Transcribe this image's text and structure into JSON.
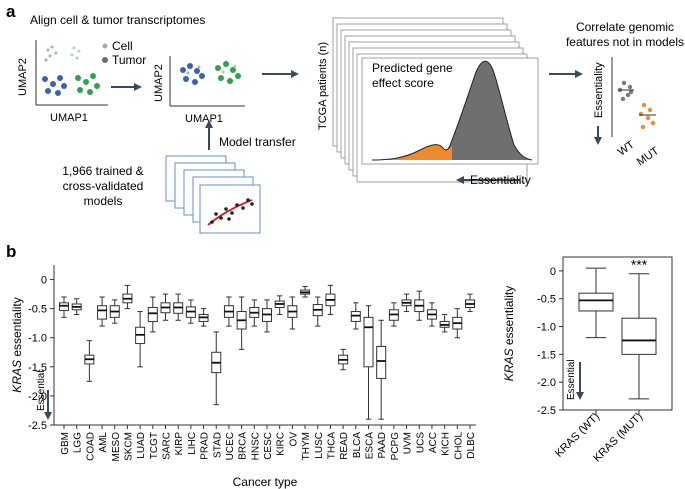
{
  "panel_a": {
    "label": "a",
    "align_title": "Align cell & tumor transcriptomes",
    "legend_cell": "Cell",
    "legend_tumor": "Tumor",
    "umap_x": "UMAP1",
    "umap_y": "UMAP2",
    "model_transfer": "Model transfer",
    "trained_models": [
      "1,966 trained &",
      "cross-validated",
      "models"
    ],
    "tcga_axis": "TCGA patients (n)",
    "predicted_title": [
      "Predicted gene",
      "effect score"
    ],
    "essentiality_label": "Essentiality",
    "correlate_title": [
      "Correlate genomic",
      "features not in models"
    ],
    "wt_label": "WT",
    "mut_label": "MUT",
    "inset_ylabel": "Essentiality",
    "colors": {
      "cell": "#a9a9a9",
      "tumor": "#6b6b6b",
      "blue": "#3a62b0",
      "green": "#2fa04e",
      "orange": "#f08a2c",
      "curve": "#d32020"
    }
  },
  "panel_b": {
    "label": "b",
    "chart_data": [
      {
        "type": "box",
        "title": "",
        "xlabel": "Cancer type",
        "ylabel": "KRAS essentiality",
        "ylabel_italic": "KRAS",
        "ylabel_rest": " essentiality",
        "ylim": [
          -2.5,
          0.25
        ],
        "yticks": [
          "0",
          "-0.5",
          "-1.0",
          "-1.5",
          "-2.0",
          "-2.5"
        ],
        "annotation": "Essential",
        "categories": [
          "GBM",
          "LGG",
          "COAD",
          "AML",
          "MESO",
          "SKCM",
          "LUAD",
          "TCGT",
          "SARC",
          "KIRP",
          "LIHC",
          "PRAD",
          "STAD",
          "UCEC",
          "BRCA",
          "HNSC",
          "CESC",
          "KIRC",
          "OV",
          "THYM",
          "LUSC",
          "THCA",
          "READ",
          "BLCA",
          "ESCA",
          "PAAD",
          "PCPG",
          "UVM",
          "UCS",
          "ACC",
          "KICH",
          "CHOL",
          "DLBC"
        ],
        "boxes": [
          {
            "wlo": -0.65,
            "q1": -0.53,
            "med": -0.45,
            "q3": -0.4,
            "whi": -0.3
          },
          {
            "wlo": -0.6,
            "q1": -0.52,
            "med": -0.47,
            "q3": -0.42,
            "whi": -0.33
          },
          {
            "wlo": -1.75,
            "q1": -1.45,
            "med": -1.37,
            "q3": -1.3,
            "whi": -1.05
          },
          {
            "wlo": -0.8,
            "q1": -0.68,
            "med": -0.53,
            "q3": -0.45,
            "whi": -0.3
          },
          {
            "wlo": -0.75,
            "q1": -0.65,
            "med": -0.55,
            "q3": -0.45,
            "whi": -0.35
          },
          {
            "wlo": -0.5,
            "q1": -0.4,
            "med": -0.33,
            "q3": -0.25,
            "whi": -0.1
          },
          {
            "wlo": -1.5,
            "q1": -1.1,
            "med": -0.95,
            "q3": -0.82,
            "whi": -0.55
          },
          {
            "wlo": -0.9,
            "q1": -0.72,
            "med": -0.58,
            "q3": -0.48,
            "whi": -0.3
          },
          {
            "wlo": -0.7,
            "q1": -0.57,
            "med": -0.48,
            "q3": -0.4,
            "whi": -0.25
          },
          {
            "wlo": -0.7,
            "q1": -0.58,
            "med": -0.48,
            "q3": -0.4,
            "whi": -0.25
          },
          {
            "wlo": -0.75,
            "q1": -0.65,
            "med": -0.55,
            "q3": -0.47,
            "whi": -0.35
          },
          {
            "wlo": -0.8,
            "q1": -0.72,
            "med": -0.65,
            "q3": -0.6,
            "whi": -0.5
          },
          {
            "wlo": -2.15,
            "q1": -1.6,
            "med": -1.43,
            "q3": -1.25,
            "whi": -0.9
          },
          {
            "wlo": -0.8,
            "q1": -0.65,
            "med": -0.55,
            "q3": -0.45,
            "whi": -0.3
          },
          {
            "wlo": -1.2,
            "q1": -0.85,
            "med": -0.7,
            "q3": -0.55,
            "whi": -0.3
          },
          {
            "wlo": -0.8,
            "q1": -0.65,
            "med": -0.57,
            "q3": -0.48,
            "whi": -0.35
          },
          {
            "wlo": -0.9,
            "q1": -0.72,
            "med": -0.6,
            "q3": -0.5,
            "whi": -0.35
          },
          {
            "wlo": -0.6,
            "q1": -0.48,
            "med": -0.42,
            "q3": -0.37,
            "whi": -0.28
          },
          {
            "wlo": -0.85,
            "q1": -0.65,
            "med": -0.55,
            "q3": -0.45,
            "whi": -0.3
          },
          {
            "wlo": -0.3,
            "q1": -0.25,
            "med": -0.22,
            "q3": -0.18,
            "whi": -0.12
          },
          {
            "wlo": -0.8,
            "q1": -0.62,
            "med": -0.52,
            "q3": -0.43,
            "whi": -0.3
          },
          {
            "wlo": -0.6,
            "q1": -0.45,
            "med": -0.35,
            "q3": -0.25,
            "whi": -0.1
          },
          {
            "wlo": -1.55,
            "q1": -1.45,
            "med": -1.38,
            "q3": -1.3,
            "whi": -1.2
          },
          {
            "wlo": -0.85,
            "q1": -0.72,
            "med": -0.62,
            "q3": -0.55,
            "whi": -0.4
          },
          {
            "wlo": -2.4,
            "q1": -1.5,
            "med": -0.82,
            "q3": -0.65,
            "whi": -0.45
          },
          {
            "wlo": -2.4,
            "q1": -1.7,
            "med": -1.4,
            "q3": -1.15,
            "whi": -0.7
          },
          {
            "wlo": -0.8,
            "q1": -0.7,
            "med": -0.6,
            "q3": -0.52,
            "whi": -0.4
          },
          {
            "wlo": -0.55,
            "q1": -0.45,
            "med": -0.4,
            "q3": -0.35,
            "whi": -0.25
          },
          {
            "wlo": -0.7,
            "q1": -0.55,
            "med": -0.45,
            "q3": -0.35,
            "whi": -0.2
          },
          {
            "wlo": -0.8,
            "q1": -0.68,
            "med": -0.6,
            "q3": -0.52,
            "whi": -0.4
          },
          {
            "wlo": -0.9,
            "q1": -0.82,
            "med": -0.78,
            "q3": -0.72,
            "whi": -0.6
          },
          {
            "wlo": -1.0,
            "q1": -0.85,
            "med": -0.75,
            "q3": -0.65,
            "whi": -0.5
          },
          {
            "wlo": -0.55,
            "q1": -0.48,
            "med": -0.42,
            "q3": -0.35,
            "whi": -0.25
          }
        ]
      },
      {
        "type": "box",
        "ylabel": "KRAS essentiality",
        "ylabel_italic": "KRAS",
        "ylabel_rest": " essentiality",
        "ylim": [
          -2.5,
          0.25
        ],
        "yticks": [
          "0",
          "-0.5",
          "-1.0",
          "-1.5",
          "-2.0",
          "-2.5"
        ],
        "annotation": "Essential",
        "significance": "***",
        "categories": [
          "KRAS (WT)",
          "KRAS (MUT)"
        ],
        "boxes": [
          {
            "wlo": -1.2,
            "q1": -0.72,
            "med": -0.53,
            "q3": -0.4,
            "whi": 0.05
          },
          {
            "wlo": -2.3,
            "q1": -1.5,
            "med": -1.25,
            "q3": -0.85,
            "whi": -0.05
          }
        ]
      }
    ]
  }
}
